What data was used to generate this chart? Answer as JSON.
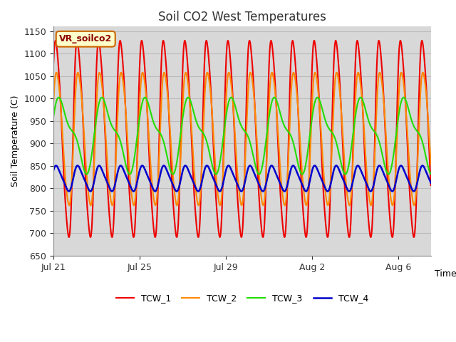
{
  "title": "Soil CO2 West Temperatures",
  "xlabel": "Time",
  "ylabel": "Soil Temperature (C)",
  "ylim": [
    650,
    1160
  ],
  "yticks": [
    650,
    700,
    750,
    800,
    850,
    900,
    950,
    1000,
    1050,
    1100,
    1150
  ],
  "bg_color": "#d8d8d8",
  "annotation_text": "VR_soilco2",
  "annotation_bg": "#ffffcc",
  "annotation_border": "#cc6600",
  "lines": {
    "TCW_1": {
      "color": "#ee0000",
      "lw": 1.5
    },
    "TCW_2": {
      "color": "#ff8800",
      "lw": 1.5
    },
    "TCW_3": {
      "color": "#22dd00",
      "lw": 1.5
    },
    "TCW_4": {
      "color": "#0000cc",
      "lw": 1.8
    }
  },
  "xtick_labels": [
    "Jul 21",
    "Jul 25",
    "Jul 29",
    "Aug 2",
    "Aug 6"
  ],
  "xtick_positions": [
    0,
    4,
    8,
    12,
    16
  ],
  "total_days": 17.5,
  "period1": 1.0,
  "period3": 2.0,
  "tcw1_base": 910,
  "tcw1_amp": 215,
  "tcw1_phase": 0.62,
  "tcw2_base": 910,
  "tcw2_amp": 148,
  "tcw2_phase": 0.45,
  "tcw3_base": 920,
  "tcw3_amp": 72,
  "tcw3_phase": 0.3,
  "tcw4_base": 822,
  "tcw4_amp": 27,
  "tcw4_phase": 0.55,
  "grid_color": "#bbbbbb",
  "grid_lw": 0.8
}
